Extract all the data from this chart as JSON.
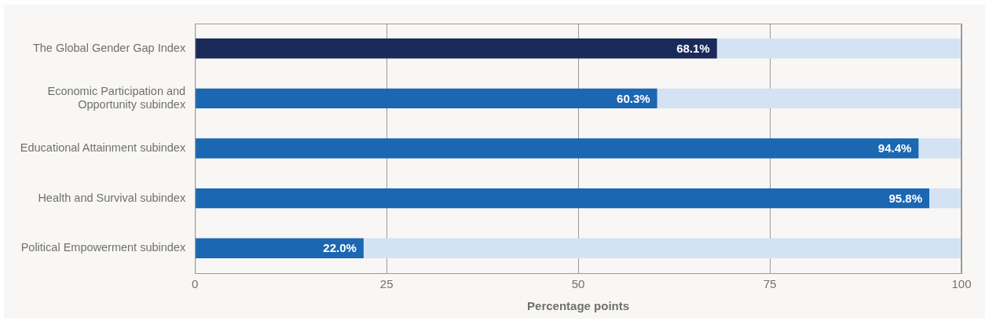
{
  "chart_data": {
    "type": "bar",
    "orientation": "horizontal",
    "stacked": true,
    "xlabel": "Percentage points",
    "categories": [
      "The Global Gender Gap Index",
      "Economic Participation and\nOpportunity subindex",
      "Educational Attainment subindex",
      "Health and Survival subindex",
      "Political Empowerment subindex"
    ],
    "series": [
      {
        "colors": [
          "#1b2b59",
          "#1b67b2",
          "#1b67b2",
          "#1b67b2",
          "#1b67b2"
        ],
        "values": [
          68.1,
          60.3,
          94.4,
          95.8,
          22.0
        ],
        "value_labels": [
          "68.1%",
          "60.3%",
          "94.4%",
          "95.8%",
          "22.0%"
        ]
      },
      {
        "color": "#d4e3f3",
        "values": [
          31.9,
          39.7,
          5.6,
          4.2,
          78.0
        ]
      }
    ],
    "xlim": [
      0,
      100
    ],
    "xticks": [
      0,
      25,
      50,
      75,
      100
    ],
    "grid": "x",
    "legend": false
  }
}
